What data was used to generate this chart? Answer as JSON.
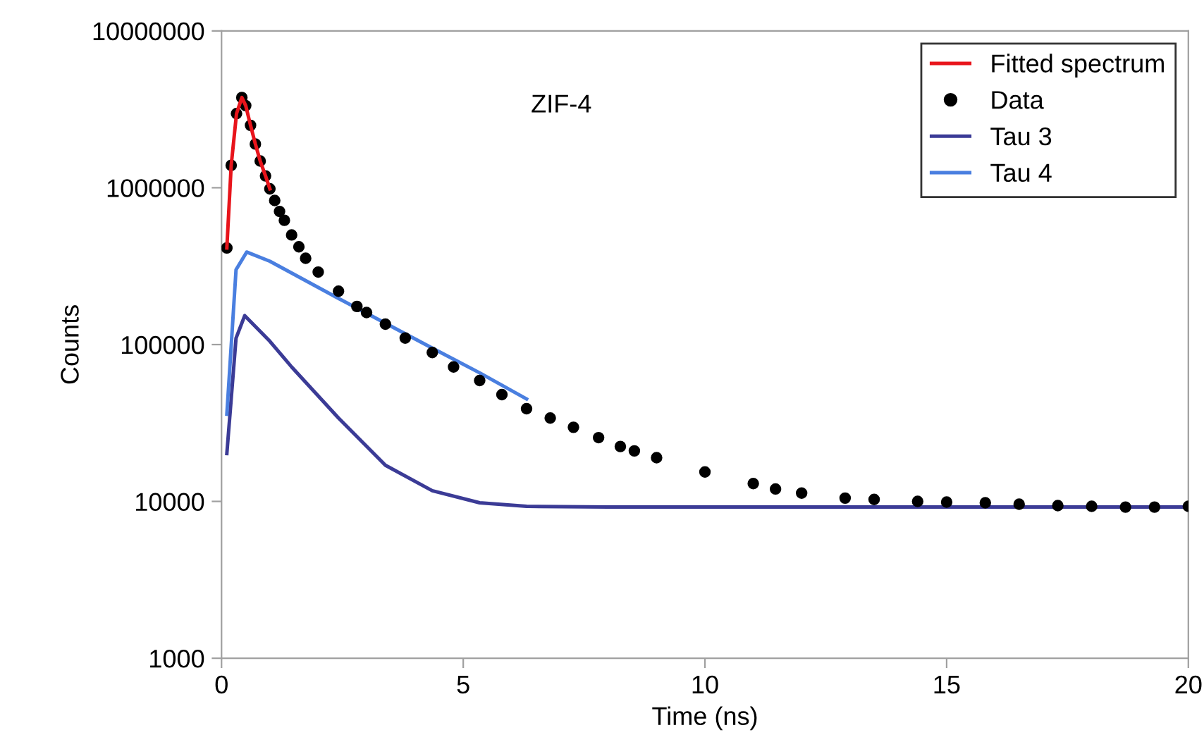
{
  "chart_data": {
    "type": "line",
    "xlabel": "Time (ns)",
    "ylabel": "Counts",
    "annotations": [
      "ZIF-4"
    ],
    "log": "y",
    "grid": false,
    "legend": "top right",
    "xlim": [
      0,
      20
    ],
    "xticks": [
      0,
      5,
      10,
      15,
      20
    ],
    "ylim": [
      1000,
      10000000
    ],
    "yticks": [
      1000,
      10000,
      100000,
      1000000,
      10000000
    ],
    "series": [
      {
        "name": "Fitted spectrum",
        "color": "#e8141b",
        "x": [
          0.11,
          0.2,
          0.31,
          0.42,
          0.5,
          0.6,
          0.7,
          0.8,
          0.91,
          1.0
        ],
        "values": [
          413000,
          1390000,
          2970000,
          3760000,
          3340000,
          2500000,
          1900000,
          1480000,
          1190000,
          984000
        ]
      },
      {
        "name": "Data",
        "type": "scatter",
        "marker": "circle",
        "color": "#000000",
        "x": [
          0.11,
          0.2,
          0.31,
          0.42,
          0.5,
          0.6,
          0.7,
          0.8,
          0.91,
          1.0,
          1.1,
          1.2,
          1.3,
          1.45,
          1.6,
          1.74,
          2.0,
          2.42,
          2.8,
          3.0,
          3.39,
          3.8,
          4.36,
          4.8,
          5.34,
          5.8,
          6.31,
          6.8,
          7.28,
          7.8,
          8.25,
          8.54,
          9.0,
          10,
          11,
          11.46,
          12,
          12.9,
          13.5,
          14.4,
          15,
          15.8,
          16.5,
          17.3,
          18,
          18.7,
          19.3,
          20
        ],
        "values": [
          413000,
          1390000,
          2970000,
          3760000,
          3340000,
          2500000,
          1900000,
          1480000,
          1190000,
          984000,
          830000,
          706000,
          620000,
          500000,
          420000,
          355000,
          290000,
          219000,
          175000,
          160000,
          135000,
          110000,
          89000,
          72000,
          59000,
          48000,
          39000,
          34000,
          29700,
          25500,
          22400,
          21000,
          19000,
          15400,
          13000,
          12000,
          11300,
          10500,
          10300,
          10000,
          9900,
          9800,
          9600,
          9400,
          9300,
          9200,
          9200,
          9300
        ]
      },
      {
        "name": "Tau 3",
        "color": "#3b3b96",
        "x": [
          0.11,
          0.3,
          0.48,
          1.0,
          1.45,
          2.42,
          3.39,
          4.36,
          5.34,
          6.31,
          8,
          10,
          12,
          14,
          16,
          18,
          20
        ],
        "values": [
          20200,
          110000,
          153000,
          105000,
          72000,
          34000,
          17000,
          11700,
          9800,
          9300,
          9200,
          9200,
          9200,
          9200,
          9200,
          9200,
          9200
        ]
      },
      {
        "name": "Tau 4",
        "color": "#4a7fe0",
        "x": [
          0.11,
          0.3,
          0.52,
          1.0,
          2.42,
          4.36,
          5.34,
          6.31
        ],
        "values": [
          36000,
          300000,
          389000,
          340000,
          197000,
          95000,
          66000,
          45000
        ]
      }
    ]
  }
}
